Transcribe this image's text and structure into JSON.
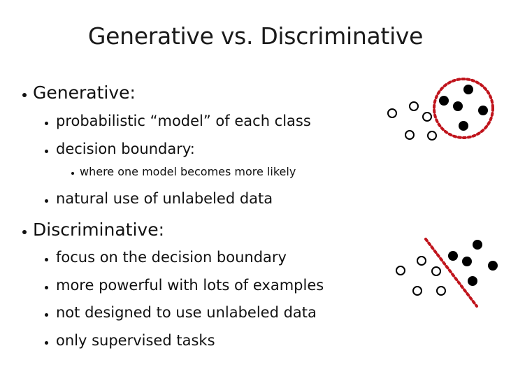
{
  "slide": {
    "title": "Generative vs. Discriminative",
    "generative": {
      "heading": "Generative:",
      "points": [
        "probabilistic “model” of each class",
        "decision boundary:",
        "natural use of unlabeled data"
      ],
      "subpoint": "where one model becomes more likely"
    },
    "discriminative": {
      "heading": "Discriminative:",
      "points": [
        "focus on the decision boundary",
        "more powerful with lots of examples",
        "not designed to use unlabeled data",
        "only supervised tasks"
      ]
    }
  },
  "colors": {
    "text": "#111111",
    "boundary": "#c0141c",
    "filled_point": "#000000",
    "open_point": "#000000"
  }
}
